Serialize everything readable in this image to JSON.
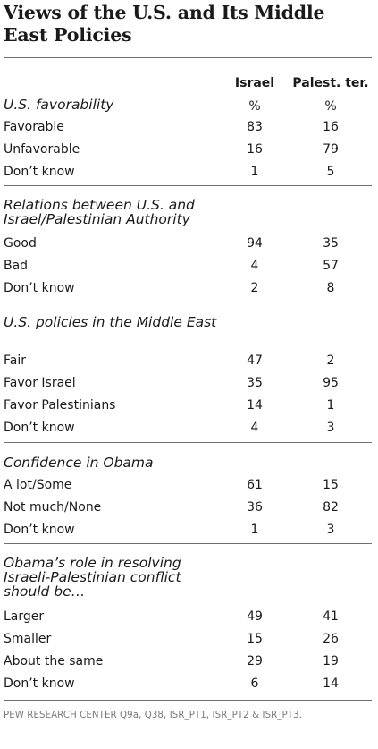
{
  "title": "Views of the U.S. and Its Middle East Policies",
  "columns": {
    "israel": "Israel",
    "palest": "Palest. ter.",
    "israel_unit": "%",
    "palest_unit": "%"
  },
  "sections": [
    {
      "heading": "U.S. favorability",
      "rows": [
        {
          "label": "Favorable",
          "israel": "83",
          "palest": "16"
        },
        {
          "label": "Unfavorable",
          "israel": "16",
          "palest": "79"
        },
        {
          "label": "Don’t know",
          "israel": "1",
          "palest": "5"
        }
      ]
    },
    {
      "heading": "Relations between U.S. and Israel/Palestinian  Authority",
      "rows": [
        {
          "label": "Good",
          "israel": "94",
          "palest": "35"
        },
        {
          "label": "Bad",
          "israel": "4",
          "palest": "57"
        },
        {
          "label": "Don’t know",
          "israel": "2",
          "palest": "8"
        }
      ]
    },
    {
      "heading": "U.S. policies in the Middle East",
      "rows": [
        {
          "label": "Fair",
          "israel": "47",
          "palest": "2"
        },
        {
          "label": "Favor Israel",
          "israel": "35",
          "palest": "95"
        },
        {
          "label": "Favor Palestinians",
          "israel": "14",
          "palest": "1"
        },
        {
          "label": "Don’t know",
          "israel": "4",
          "palest": "3"
        }
      ]
    },
    {
      "heading": "Confidence in Obama",
      "rows": [
        {
          "label": "A lot/Some",
          "israel": "61",
          "palest": "15"
        },
        {
          "label": "Not much/None",
          "israel": "36",
          "palest": "82"
        },
        {
          "label": "Don’t know",
          "israel": "1",
          "palest": "3"
        }
      ]
    },
    {
      "heading": "Obama’s role in resolving Israeli-Palestinian conflict should be…",
      "rows": [
        {
          "label": "Larger",
          "israel": "49",
          "palest": "41"
        },
        {
          "label": "Smaller",
          "israel": "15",
          "palest": "26"
        },
        {
          "label": "About the same",
          "israel": "29",
          "palest": "19"
        },
        {
          "label": "Don’t know",
          "israel": "6",
          "palest": "14"
        }
      ]
    }
  ],
  "source": "PEW RESEARCH CENTER Q9a, Q38, ISR_PT1, ISR_PT2 & ISR_PT3."
}
